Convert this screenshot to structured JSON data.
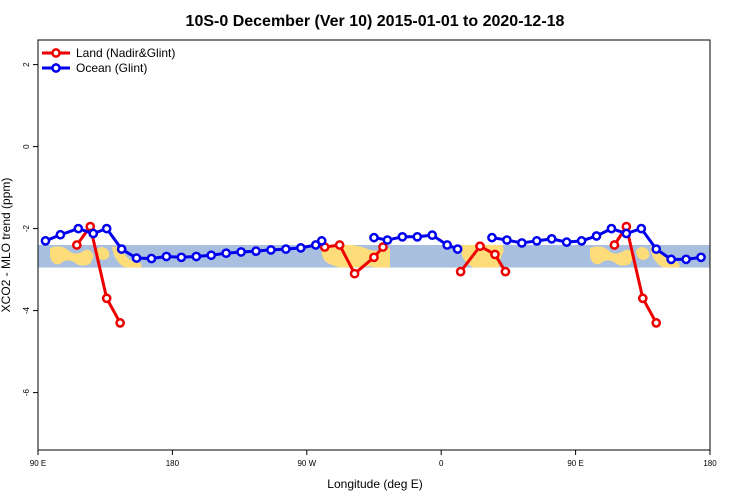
{
  "chart_data": {
    "type": "line",
    "title": "10S-0 December (Ver 10)   2015-01-01 to 2020-12-18",
    "xlabel": "Longitude (deg E)",
    "ylabel": "XCO2 - MLO trend (ppm)",
    "xlim": [
      90,
      540
    ],
    "ylim": [
      -7.4,
      2.6
    ],
    "x_ticks": [
      {
        "value": 90,
        "label": "90 E"
      },
      {
        "value": 180,
        "label": "180"
      },
      {
        "value": 270,
        "label": "90 W"
      },
      {
        "value": 360,
        "label": "0"
      },
      {
        "value": 450,
        "label": "90 E"
      },
      {
        "value": 540,
        "label": "180"
      }
    ],
    "y_ticks": [
      {
        "value": 2,
        "label": "2"
      },
      {
        "value": 0,
        "label": "0"
      },
      {
        "value": -2,
        "label": "-2"
      },
      {
        "value": -4,
        "label": "-4"
      },
      {
        "value": -6,
        "label": "-6"
      }
    ],
    "band": {
      "ymin": -2.95,
      "ymax": -2.4,
      "color": "#a9bfe0",
      "land_color": "#fddc7a"
    },
    "legend_position": "top-left",
    "series": [
      {
        "name": "Land (Nadir&Glint)",
        "color": "#ee0000",
        "segments": [
          [
            [
              116,
              -2.4
            ],
            [
              125,
              -1.95
            ],
            [
              136,
              -3.7
            ],
            [
              145,
              -4.3
            ]
          ],
          [
            [
              282,
              -2.45
            ],
            [
              292,
              -2.4
            ],
            [
              302,
              -3.1
            ],
            [
              315,
              -2.7
            ],
            [
              321,
              -2.45
            ]
          ],
          [
            [
              373,
              -3.05
            ],
            [
              386,
              -2.43
            ],
            [
              396,
              -2.63
            ],
            [
              403,
              -3.05
            ]
          ],
          [
            [
              476,
              -2.4
            ],
            [
              484,
              -1.95
            ],
            [
              495,
              -3.7
            ],
            [
              504,
              -4.3
            ]
          ]
        ]
      },
      {
        "name": "Ocean (Glint)",
        "color": "#0000ee",
        "segments": [
          [
            [
              95,
              -2.3
            ],
            [
              105,
              -2.15
            ],
            [
              117,
              -2.0
            ],
            [
              127,
              -2.12
            ],
            [
              136,
              -2.0
            ],
            [
              146,
              -2.5
            ],
            [
              156,
              -2.72
            ],
            [
              166,
              -2.73
            ],
            [
              176,
              -2.68
            ],
            [
              186,
              -2.7
            ],
            [
              196,
              -2.68
            ],
            [
              206,
              -2.65
            ],
            [
              216,
              -2.6
            ],
            [
              226,
              -2.57
            ],
            [
              236,
              -2.55
            ],
            [
              246,
              -2.52
            ],
            [
              256,
              -2.5
            ],
            [
              266,
              -2.47
            ],
            [
              276,
              -2.4
            ],
            [
              280,
              -2.3
            ]
          ],
          [
            [
              315,
              -2.22
            ],
            [
              324,
              -2.28
            ],
            [
              334,
              -2.2
            ],
            [
              344,
              -2.2
            ],
            [
              354,
              -2.16
            ],
            [
              364,
              -2.4
            ],
            [
              371,
              -2.5
            ]
          ],
          [
            [
              394,
              -2.22
            ],
            [
              404,
              -2.28
            ],
            [
              414,
              -2.35
            ],
            [
              424,
              -2.3
            ],
            [
              434,
              -2.25
            ],
            [
              444,
              -2.33
            ],
            [
              454,
              -2.3
            ],
            [
              464,
              -2.18
            ],
            [
              474,
              -2.0
            ],
            [
              484,
              -2.12
            ],
            [
              494,
              -2.0
            ],
            [
              504,
              -2.5
            ],
            [
              514,
              -2.75
            ],
            [
              524,
              -2.75
            ],
            [
              534,
              -2.7
            ]
          ]
        ]
      }
    ]
  }
}
